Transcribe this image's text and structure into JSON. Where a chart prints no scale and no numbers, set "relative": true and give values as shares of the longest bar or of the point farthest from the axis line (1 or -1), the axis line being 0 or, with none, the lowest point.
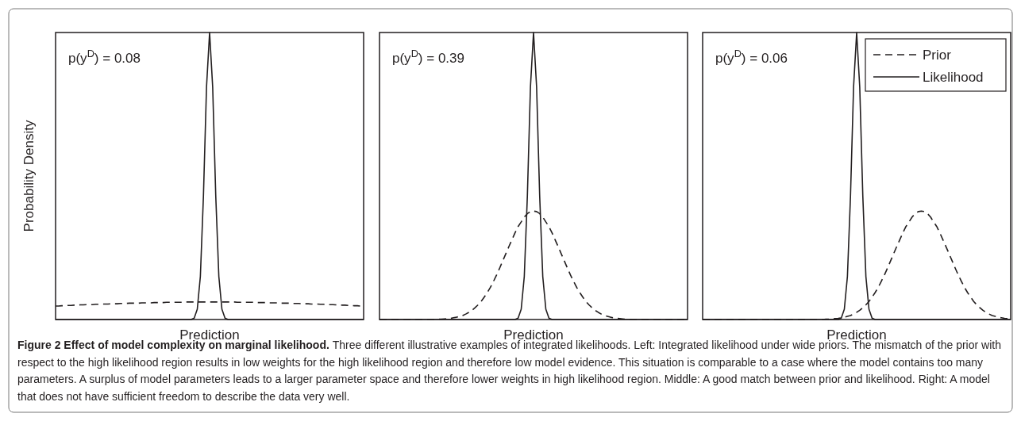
{
  "chart_data": [
    {
      "type": "line",
      "relative": true,
      "ylabel": "Probability Density",
      "xlabel": "Prediction",
      "annotations": [
        "p(y$^{D}$) = 0.08"
      ],
      "legend": false,
      "categories": [
        null,
        null,
        null,
        null,
        null,
        null,
        null,
        null,
        null,
        null,
        null,
        null,
        null,
        null,
        null,
        null,
        null,
        null,
        null,
        null,
        null,
        null,
        null,
        null,
        null,
        null,
        null,
        null,
        null,
        null,
        null,
        null,
        null,
        null,
        null,
        null,
        null,
        null,
        null,
        null,
        null,
        null,
        null,
        null,
        null,
        null,
        null,
        null,
        null,
        null,
        null,
        null,
        null,
        null,
        null,
        null,
        null,
        null,
        null,
        null,
        null,
        null,
        null,
        null,
        null,
        null,
        null,
        null,
        null,
        null,
        null,
        null,
        null,
        null,
        null,
        null,
        null,
        null,
        null,
        null,
        null,
        null,
        null,
        null,
        null,
        null,
        null,
        null,
        null,
        null,
        null,
        null,
        null,
        null,
        null,
        null,
        null,
        null,
        null,
        null,
        null
      ],
      "series": [
        {
          "color": "#231f20",
          "line_style": "dashed",
          "values": [
            0.047,
            0.047,
            0.048,
            0.048,
            0.049,
            0.049,
            0.05,
            0.05,
            0.051,
            0.051,
            0.052,
            0.052,
            0.052,
            0.053,
            0.053,
            0.054,
            0.054,
            0.054,
            0.055,
            0.055,
            0.055,
            0.056,
            0.056,
            0.056,
            0.057,
            0.057,
            0.057,
            0.057,
            0.058,
            0.058,
            0.058,
            0.058,
            0.059,
            0.059,
            0.059,
            0.059,
            0.06,
            0.06,
            0.06,
            0.06,
            0.06,
            0.06,
            0.061,
            0.061,
            0.061,
            0.061,
            0.061,
            0.061,
            0.061,
            0.061,
            0.061,
            0.061,
            0.061,
            0.061,
            0.061,
            0.061,
            0.061,
            0.061,
            0.061,
            0.06,
            0.06,
            0.06,
            0.06,
            0.06,
            0.06,
            0.059,
            0.059,
            0.059,
            0.059,
            0.058,
            0.058,
            0.058,
            0.058,
            0.057,
            0.057,
            0.057,
            0.057,
            0.056,
            0.056,
            0.056,
            0.055,
            0.055,
            0.055,
            0.054,
            0.054,
            0.054,
            0.053,
            0.053,
            0.052,
            0.052,
            0.052,
            0.051,
            0.051,
            0.05,
            0.05,
            0.049,
            0.049,
            0.048,
            0.048,
            0.047,
            0.047
          ]
        },
        {
          "color": "#231f20",
          "line_style": "solid",
          "values": [
            0,
            0,
            0,
            0,
            0,
            0,
            0,
            0,
            0,
            0,
            0,
            0,
            0,
            0,
            0,
            0,
            0,
            0,
            0,
            0,
            0,
            0,
            0,
            0,
            0,
            0,
            0,
            0,
            0,
            0,
            0,
            0,
            0,
            0,
            0,
            0,
            0,
            0,
            0,
            0,
            0,
            0,
            0,
            0,
            0,
            0.005,
            0.036,
            0.15,
            0.43,
            0.81,
            1,
            0.81,
            0.43,
            0.15,
            0.036,
            0.005,
            0,
            0,
            0,
            0,
            0,
            0,
            0,
            0,
            0,
            0,
            0,
            0,
            0,
            0,
            0,
            0,
            0,
            0,
            0,
            0,
            0,
            0,
            0,
            0,
            0,
            0,
            0,
            0,
            0,
            0,
            0,
            0,
            0,
            0,
            0,
            0,
            0,
            0,
            0,
            0,
            0,
            0,
            0,
            0,
            0
          ]
        }
      ]
    },
    {
      "type": "line",
      "relative": true,
      "xlabel": "Prediction",
      "annotations": [
        "p(y$^{D}$) = 0.39"
      ],
      "legend": false,
      "categories": [
        null,
        null,
        null,
        null,
        null,
        null,
        null,
        null,
        null,
        null,
        null,
        null,
        null,
        null,
        null,
        null,
        null,
        null,
        null,
        null,
        null,
        null,
        null,
        null,
        null,
        null,
        null,
        null,
        null,
        null,
        null,
        null,
        null,
        null,
        null,
        null,
        null,
        null,
        null,
        null,
        null,
        null,
        null,
        null,
        null,
        null,
        null,
        null,
        null,
        null,
        null,
        null,
        null,
        null,
        null,
        null,
        null,
        null,
        null,
        null,
        null,
        null,
        null,
        null,
        null,
        null,
        null,
        null,
        null,
        null,
        null,
        null,
        null,
        null,
        null,
        null,
        null,
        null,
        null,
        null,
        null,
        null,
        null,
        null,
        null,
        null,
        null,
        null,
        null,
        null,
        null,
        null,
        null,
        null,
        null,
        null,
        null,
        null,
        null,
        null,
        null
      ],
      "series": [
        {
          "color": "#231f20",
          "line_style": "dashed",
          "values": [
            0,
            0,
            0,
            0,
            0,
            0,
            0,
            0,
            0,
            0,
            0,
            0,
            0,
            0,
            0,
            0,
            0,
            0,
            0,
            0.001,
            0.001,
            0.002,
            0.003,
            0.004,
            0.006,
            0.008,
            0.011,
            0.014,
            0.019,
            0.025,
            0.032,
            0.041,
            0.051,
            0.063,
            0.078,
            0.094,
            0.112,
            0.133,
            0.155,
            0.179,
            0.204,
            0.229,
            0.254,
            0.278,
            0.302,
            0.324,
            0.34,
            0.357,
            0.369,
            0.376,
            0.378,
            0.376,
            0.369,
            0.357,
            0.34,
            0.324,
            0.302,
            0.278,
            0.254,
            0.229,
            0.204,
            0.179,
            0.155,
            0.133,
            0.112,
            0.094,
            0.078,
            0.063,
            0.051,
            0.041,
            0.032,
            0.025,
            0.019,
            0.014,
            0.011,
            0.008,
            0.006,
            0.004,
            0.003,
            0.002,
            0.001,
            0.001,
            0,
            0,
            0,
            0,
            0,
            0,
            0,
            0,
            0,
            0,
            0,
            0,
            0,
            0,
            0,
            0,
            0,
            0,
            0
          ]
        },
        {
          "color": "#231f20",
          "line_style": "solid",
          "values": [
            0,
            0,
            0,
            0,
            0,
            0,
            0,
            0,
            0,
            0,
            0,
            0,
            0,
            0,
            0,
            0,
            0,
            0,
            0,
            0,
            0,
            0,
            0,
            0,
            0,
            0,
            0,
            0,
            0,
            0,
            0,
            0,
            0,
            0,
            0,
            0,
            0,
            0,
            0,
            0,
            0,
            0,
            0,
            0,
            0,
            0.005,
            0.036,
            0.15,
            0.43,
            0.81,
            1,
            0.81,
            0.43,
            0.15,
            0.036,
            0.005,
            0,
            0,
            0,
            0,
            0,
            0,
            0,
            0,
            0,
            0,
            0,
            0,
            0,
            0,
            0,
            0,
            0,
            0,
            0,
            0,
            0,
            0,
            0,
            0,
            0,
            0,
            0,
            0,
            0,
            0,
            0,
            0,
            0,
            0,
            0,
            0,
            0,
            0,
            0,
            0,
            0,
            0,
            0,
            0,
            0
          ]
        }
      ]
    },
    {
      "type": "line",
      "relative": true,
      "xlabel": "Prediction",
      "annotations": [
        "p(y$^{D}$) = 0.06"
      ],
      "legend": "top right",
      "categories": [
        null,
        null,
        null,
        null,
        null,
        null,
        null,
        null,
        null,
        null,
        null,
        null,
        null,
        null,
        null,
        null,
        null,
        null,
        null,
        null,
        null,
        null,
        null,
        null,
        null,
        null,
        null,
        null,
        null,
        null,
        null,
        null,
        null,
        null,
        null,
        null,
        null,
        null,
        null,
        null,
        null,
        null,
        null,
        null,
        null,
        null,
        null,
        null,
        null,
        null,
        null,
        null,
        null,
        null,
        null,
        null,
        null,
        null,
        null,
        null,
        null,
        null,
        null,
        null,
        null,
        null,
        null,
        null,
        null,
        null,
        null,
        null,
        null,
        null,
        null,
        null,
        null,
        null,
        null,
        null,
        null,
        null,
        null,
        null,
        null,
        null,
        null,
        null,
        null,
        null,
        null,
        null,
        null,
        null,
        null,
        null,
        null,
        null,
        null,
        null,
        null
      ],
      "series": [
        {
          "name": "Prior",
          "color": "#231f20",
          "line_style": "dashed",
          "values": [
            0,
            0,
            0,
            0,
            0,
            0,
            0,
            0,
            0,
            0,
            0,
            0,
            0,
            0,
            0,
            0,
            0,
            0,
            0,
            0,
            0,
            0,
            0,
            0,
            0,
            0,
            0,
            0,
            0,
            0,
            0,
            0,
            0,
            0,
            0,
            0,
            0,
            0,
            0,
            0,
            0.001,
            0.001,
            0.002,
            0.003,
            0.004,
            0.006,
            0.008,
            0.011,
            0.014,
            0.019,
            0.025,
            0.032,
            0.041,
            0.051,
            0.063,
            0.078,
            0.094,
            0.112,
            0.133,
            0.155,
            0.179,
            0.204,
            0.229,
            0.254,
            0.278,
            0.302,
            0.324,
            0.34,
            0.357,
            0.369,
            0.376,
            0.378,
            0.376,
            0.369,
            0.357,
            0.34,
            0.324,
            0.302,
            0.278,
            0.254,
            0.229,
            0.204,
            0.179,
            0.155,
            0.133,
            0.112,
            0.094,
            0.078,
            0.063,
            0.051,
            0.041,
            0.032,
            0.025,
            0.019,
            0.014,
            0.011,
            0.008,
            0.006,
            0.004,
            0.003,
            0.002
          ]
        },
        {
          "name": "Likelihood",
          "color": "#231f20",
          "line_style": "solid",
          "values": [
            0,
            0,
            0,
            0,
            0,
            0,
            0,
            0,
            0,
            0,
            0,
            0,
            0,
            0,
            0,
            0,
            0,
            0,
            0,
            0,
            0,
            0,
            0,
            0,
            0,
            0,
            0,
            0,
            0,
            0,
            0,
            0,
            0,
            0,
            0,
            0,
            0,
            0,
            0,
            0,
            0,
            0,
            0,
            0,
            0,
            0.005,
            0.036,
            0.15,
            0.43,
            0.81,
            1,
            0.81,
            0.43,
            0.15,
            0.036,
            0.005,
            0,
            0,
            0,
            0,
            0,
            0,
            0,
            0,
            0,
            0,
            0,
            0,
            0,
            0,
            0,
            0,
            0,
            0,
            0,
            0,
            0,
            0,
            0,
            0,
            0,
            0,
            0,
            0,
            0,
            0,
            0,
            0,
            0,
            0,
            0,
            0,
            0,
            0,
            0,
            0,
            0,
            0,
            0,
            0,
            0
          ]
        }
      ]
    },
    {
      "type": "other",
      "title": "Figure 2 Effect of model complexity on marginal likelihood.",
      "annotations": [
        "Three different illustrative examples of integrated likelihoods. Left: Integrated likelihood under wide priors. The mismatch of the prior with respect to the high likelihood region results in low weights for the high likelihood region and therefore low model evidence. This situation is comparable to a case where the model contains too many parameters. A surplus of model parameters leads to a larger parameter space and therefore lower weights in high likelihood region. Middle: A good match between prior and likelihood. Right: A model that does not have sufficient freedom to describe the data very well."
      ]
    }
  ]
}
